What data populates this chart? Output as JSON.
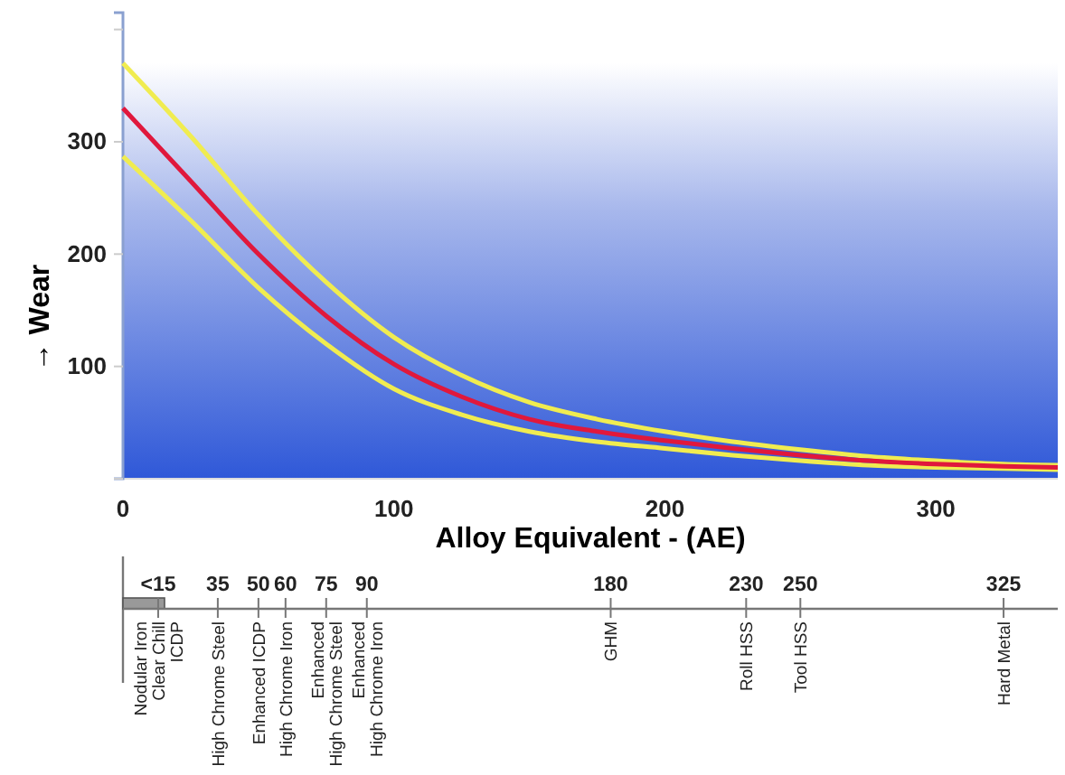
{
  "chart_data": {
    "type": "line",
    "xlabel": "Alloy Equivalent - (AE)",
    "ylabel": "→ Wear",
    "x": [
      0,
      25,
      50,
      75,
      100,
      125,
      150,
      175,
      200,
      225,
      250,
      275,
      300,
      325,
      345
    ],
    "series": [
      {
        "color": "#f0ec50",
        "values": [
          370,
          305,
          235,
          175,
          126,
          92,
          68,
          53,
          42,
          33,
          26,
          20,
          16,
          13,
          12
        ]
      },
      {
        "color": "#f0ec50",
        "values": [
          287,
          230,
          170,
          120,
          80,
          57,
          42,
          33,
          27,
          21,
          16,
          12,
          10,
          9,
          8
        ]
      },
      {
        "color": "#e0183c",
        "values": [
          330,
          265,
          200,
          145,
          102,
          73,
          53,
          42,
          34,
          27,
          21,
          16,
          13,
          11,
          10
        ]
      }
    ],
    "xlim": [
      0,
      345
    ],
    "xticks": [
      0,
      100,
      200,
      300
    ],
    "ylim": [
      0,
      415
    ],
    "yticks": [
      {
        "value": 0,
        "label": null
      },
      100,
      200,
      300,
      {
        "value": 400,
        "label": null
      }
    ],
    "x2lim": [
      0,
      345
    ],
    "x2ticks": [
      {
        "value": 13,
        "label": "<15"
      },
      35,
      50,
      60,
      75,
      90,
      180,
      230,
      250,
      325
    ],
    "bands": [
      {
        "axis": "y",
        "from": 0,
        "to": 370
      }
    ],
    "annotations": [
      "Nodular Iron\nClear Chill\nICDP",
      "High Chrome Steel",
      "Enhanced ICDP",
      "High Chrome Iron",
      "Enhanced\nHigh Chrome Steel",
      "Enhanced\nHigh Chrome Iron",
      "GHM",
      "Roll HSS",
      "Tool HSS",
      "Hard Metal"
    ],
    "marker": "none",
    "line_style": "solid"
  }
}
